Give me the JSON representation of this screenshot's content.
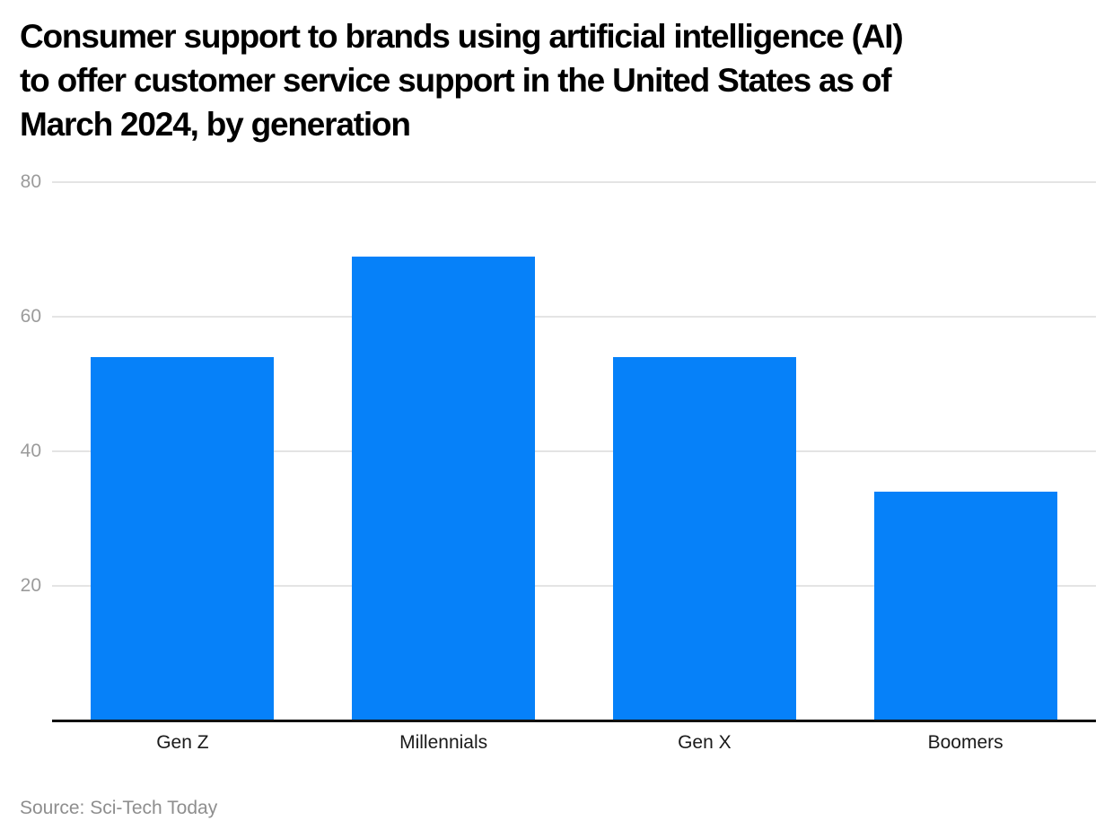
{
  "title": {
    "lines": [
      "Consumer support to brands using artificial intelligence (AI)",
      "to offer customer service support in the United States as of",
      "March 2024, by generation"
    ]
  },
  "source": "Source: Sci-Tech Today",
  "colors": {
    "bar": "#0681f9",
    "gridline": "#e4e4e4",
    "axis_line": "#111111",
    "tick_label": "#9b9b9b",
    "category_label": "#1a1a1a",
    "source_text": "#8e8e8e",
    "title_text": "#000000",
    "background": "#ffffff"
  },
  "chart_data": {
    "type": "bar",
    "title": "Consumer support to brands using artificial intelligence (AI) to offer customer service support in the United States as of March 2024, by generation",
    "categories": [
      "Gen Z",
      "Millennials",
      "Gen X",
      "Boomers"
    ],
    "values": [
      54,
      69,
      54,
      34
    ],
    "xlabel": "",
    "ylabel": "",
    "ylim": [
      0,
      80
    ],
    "yticks": [
      20,
      40,
      60,
      80
    ],
    "grid": "horizontal-only",
    "legend": "none",
    "bar_color": "#0681f9",
    "source": "Source: Sci-Tech Today"
  }
}
